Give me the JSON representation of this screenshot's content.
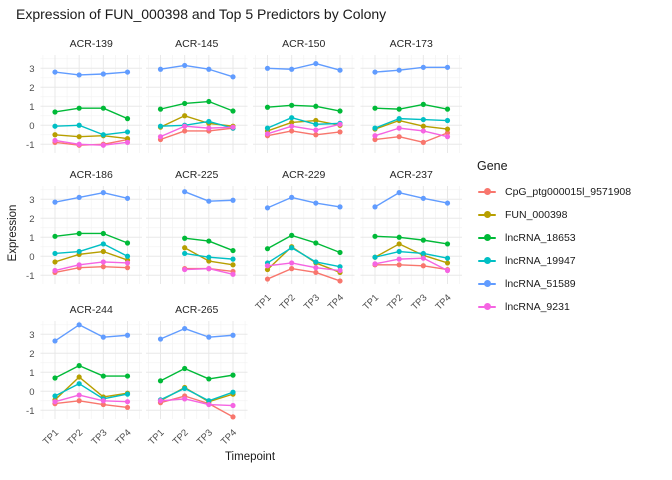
{
  "chart_data": {
    "type": "line",
    "title": "Expression of FUN_000398 and Top 5 Predictors by Colony",
    "xlabel": "Timepoint",
    "ylabel": "Expression",
    "legend_title": "Gene",
    "legend_position": "right",
    "x": [
      "TP1",
      "TP2",
      "TP3",
      "TP4"
    ],
    "yticks": [
      3,
      2,
      1,
      0,
      -1
    ],
    "ylim": [
      -1.46,
      3.7
    ],
    "grid": true,
    "facet_grid": {
      "rows": 3,
      "cols": 4
    },
    "genes": [
      {
        "name": "CpG_ptg000015l_9571908",
        "color": "#F8766D"
      },
      {
        "name": "FUN_000398",
        "color": "#B79F00"
      },
      {
        "name": "lncRNA_18653",
        "color": "#00BA38"
      },
      {
        "name": "lncRNA_19947",
        "color": "#00BFC4"
      },
      {
        "name": "lncRNA_51589",
        "color": "#619CFF"
      },
      {
        "name": "lncRNA_9231",
        "color": "#F564E2"
      }
    ],
    "facets": [
      {
        "label": "ACR-139",
        "series": [
          [
            -0.9,
            -1.05,
            -1.0,
            -0.75
          ],
          [
            -0.5,
            -0.6,
            -0.55,
            -0.7
          ],
          [
            0.7,
            0.9,
            0.9,
            0.35
          ],
          [
            -0.05,
            0.0,
            -0.5,
            -0.35
          ],
          [
            2.8,
            2.65,
            2.7,
            2.8
          ],
          [
            -0.8,
            -1.0,
            -1.05,
            -0.9
          ]
        ]
      },
      {
        "label": "ACR-145",
        "series": [
          [
            -0.75,
            -0.3,
            -0.3,
            -0.15
          ],
          [
            -0.1,
            0.5,
            0.1,
            -0.05
          ],
          [
            0.85,
            1.15,
            1.25,
            0.75
          ],
          [
            -0.05,
            0.0,
            0.2,
            -0.15
          ],
          [
            2.95,
            3.15,
            2.95,
            2.55
          ],
          [
            -0.6,
            -0.05,
            -0.15,
            -0.1
          ]
        ]
      },
      {
        "label": "ACR-150",
        "series": [
          [
            -0.55,
            -0.3,
            -0.5,
            -0.35
          ],
          [
            -0.3,
            0.15,
            0.25,
            0.0
          ],
          [
            0.95,
            1.05,
            1.0,
            0.75
          ],
          [
            -0.15,
            0.4,
            0.05,
            0.1
          ],
          [
            3.0,
            2.95,
            3.25,
            2.9
          ],
          [
            -0.45,
            -0.05,
            -0.25,
            0.05
          ]
        ]
      },
      {
        "label": "ACR-173",
        "series": [
          [
            -0.75,
            -0.6,
            -0.9,
            -0.4
          ],
          [
            -0.2,
            0.25,
            -0.05,
            -0.2
          ],
          [
            0.9,
            0.85,
            1.1,
            0.85
          ],
          [
            -0.15,
            0.35,
            0.3,
            0.25
          ],
          [
            2.8,
            2.9,
            3.05,
            3.05
          ],
          [
            -0.55,
            -0.15,
            -0.3,
            -0.6
          ]
        ]
      },
      {
        "label": "ACR-186",
        "series": [
          [
            -0.85,
            -0.6,
            -0.55,
            -0.6
          ],
          [
            -0.3,
            0.1,
            0.25,
            -0.2
          ],
          [
            1.05,
            1.2,
            1.2,
            0.7
          ],
          [
            0.15,
            0.25,
            0.65,
            0.0
          ],
          [
            2.85,
            3.1,
            3.35,
            3.05
          ],
          [
            -0.75,
            -0.45,
            -0.3,
            -0.35
          ]
        ]
      },
      {
        "label": "ACR-225",
        "series": [
          [
            null,
            -0.65,
            -0.65,
            -0.8
          ],
          [
            null,
            0.45,
            -0.25,
            -0.45
          ],
          [
            null,
            0.95,
            0.8,
            0.3
          ],
          [
            null,
            0.15,
            -0.05,
            -0.15
          ],
          [
            null,
            3.4,
            2.9,
            2.95
          ],
          [
            null,
            -0.7,
            -0.65,
            -0.95
          ]
        ]
      },
      {
        "label": "ACR-229",
        "series": [
          [
            -1.2,
            -0.65,
            -0.85,
            -1.3
          ],
          [
            -0.7,
            0.5,
            -0.35,
            -0.85
          ],
          [
            0.4,
            1.1,
            0.7,
            0.2
          ],
          [
            -0.35,
            0.45,
            -0.3,
            -0.55
          ],
          [
            2.55,
            3.1,
            2.8,
            2.6
          ],
          [
            -0.5,
            -0.35,
            -0.6,
            -0.75
          ]
        ]
      },
      {
        "label": "ACR-237",
        "series": [
          [
            -0.45,
            -0.45,
            -0.5,
            -0.7
          ],
          [
            -0.05,
            0.65,
            0.05,
            -0.35
          ],
          [
            1.05,
            1.0,
            0.85,
            0.65
          ],
          [
            -0.05,
            0.25,
            0.15,
            -0.1
          ],
          [
            2.6,
            3.35,
            3.05,
            2.8
          ],
          [
            -0.4,
            -0.15,
            -0.1,
            -0.75
          ]
        ]
      },
      {
        "label": "ACR-244",
        "series": [
          [
            -0.65,
            -0.5,
            -0.7,
            -0.85
          ],
          [
            -0.45,
            0.75,
            -0.3,
            -0.1
          ],
          [
            0.7,
            1.35,
            0.8,
            0.8
          ],
          [
            -0.25,
            0.4,
            -0.4,
            -0.15
          ],
          [
            2.65,
            3.5,
            2.85,
            2.95
          ],
          [
            -0.55,
            -0.2,
            -0.5,
            -0.55
          ]
        ]
      },
      {
        "label": "ACR-265",
        "series": [
          [
            -0.6,
            -0.25,
            -0.65,
            -1.35
          ],
          [
            -0.5,
            0.2,
            -0.55,
            -0.15
          ],
          [
            0.55,
            1.2,
            0.65,
            0.85
          ],
          [
            -0.45,
            0.15,
            -0.5,
            -0.05
          ],
          [
            2.75,
            3.3,
            2.85,
            2.95
          ],
          [
            -0.5,
            -0.4,
            -0.7,
            -0.75
          ]
        ]
      }
    ]
  }
}
